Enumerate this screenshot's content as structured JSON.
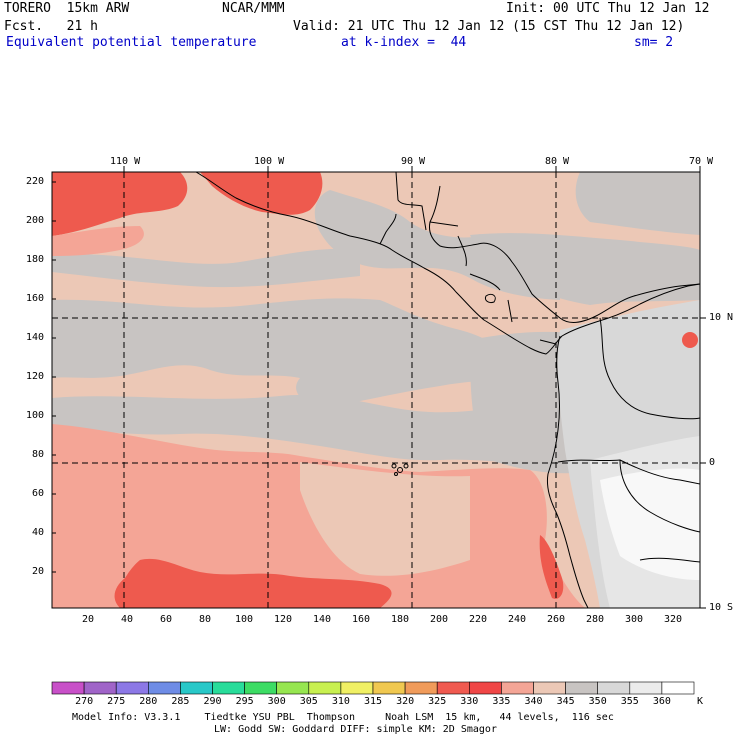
{
  "header": {
    "model_name": "TORERO  15km ARW",
    "org": "NCAR/MMM",
    "init": "Init: 00 UTC Thu 12 Jan 12",
    "fcst": "Fcst.   21 h",
    "valid": "Valid: 21 UTC Thu 12 Jan 12 (15 CST Thu 12 Jan 12)",
    "field": "Equivalent potential temperature",
    "kindex": "at k-index =  44",
    "sm": "sm= 2"
  },
  "map": {
    "lon_labels": [
      "110 W",
      "100 W",
      "90 W",
      "80 W",
      "70 W"
    ],
    "lat_labels": [
      "10 N",
      "0",
      "10 S"
    ],
    "y_ticks": [
      "220",
      "200",
      "180",
      "160",
      "140",
      "120",
      "100",
      "80",
      "60",
      "40",
      "20"
    ],
    "x_ticks": [
      "20",
      "40",
      "60",
      "80",
      "100",
      "120",
      "140",
      "160",
      "180",
      "200",
      "220",
      "240",
      "260",
      "280",
      "300",
      "320"
    ],
    "palette": {
      "band_gray": "#c8c4c2",
      "band_tan": "#ecc8b6",
      "band_salmon": "#f4a596",
      "band_red": "#ee5a4e",
      "land_light": "#e6e6e6",
      "land_white": "#f8f8f8"
    }
  },
  "colorbar": {
    "unit": "K",
    "labels": [
      "270",
      "275",
      "280",
      "285",
      "290",
      "295",
      "300",
      "305",
      "310",
      "315",
      "320",
      "325",
      "330",
      "335",
      "340",
      "345",
      "350",
      "355",
      "360"
    ],
    "colors": [
      "#c850c8",
      "#a064c8",
      "#8c78e6",
      "#6e8ce6",
      "#28c8c8",
      "#28dc9a",
      "#3cdc64",
      "#96e650",
      "#c8f050",
      "#f0f064",
      "#f0c850",
      "#f09b5a",
      "#f05a50",
      "#f04646",
      "#f4a596",
      "#ecc8b6",
      "#c8c4c2",
      "#d8d8d8",
      "#ececec",
      "#ffffff"
    ]
  },
  "footer": {
    "line1": "Model Info: V3.3.1    Tiedtke YSU PBL  Thompson     Noah LSM  15 km,   44 levels,  116 sec",
    "line2": "LW: Godd SW: Goddard DIFF: simple KM: 2D Smagor"
  }
}
